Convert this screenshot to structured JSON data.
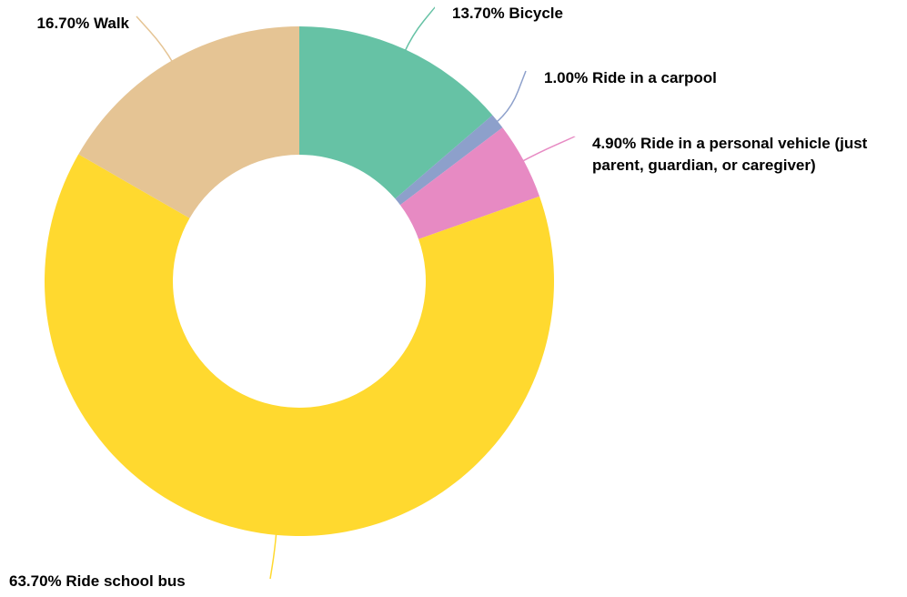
{
  "chart_data": {
    "type": "donut",
    "categories": [
      "Bicycle",
      "Ride in a carpool",
      "Ride in a personal vehicle (just parent, guardian, or caregiver)",
      "Ride school bus",
      "Walk"
    ],
    "values": [
      13.7,
      1.0,
      4.9,
      63.7,
      16.7
    ],
    "value_labels": [
      "13.70%",
      "1.00%",
      "4.90%",
      "63.70%",
      "16.70%"
    ],
    "colors": [
      "#66c2a5",
      "#8da0cb",
      "#e78ac3",
      "#ffd92f",
      "#e5c494"
    ]
  }
}
